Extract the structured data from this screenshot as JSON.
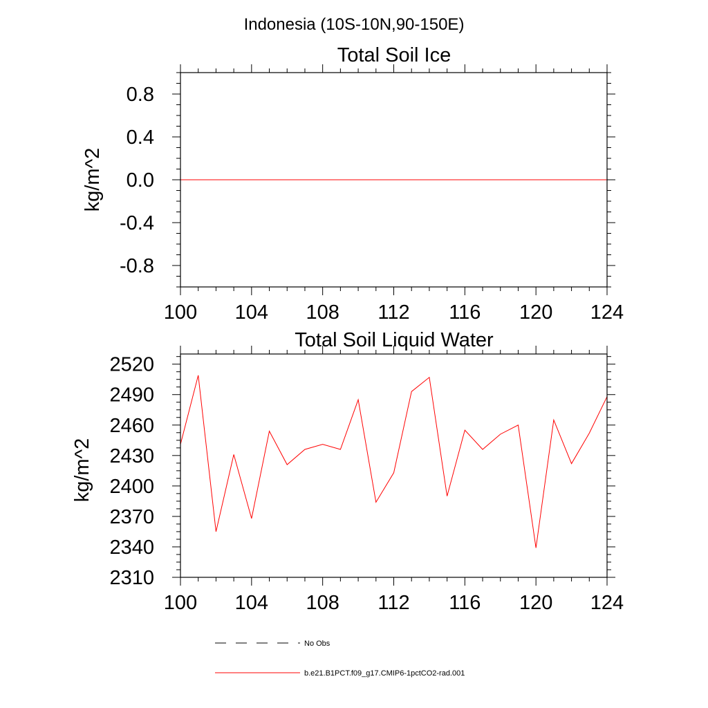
{
  "figure": {
    "suptitle": "Indonesia (10S-10N,90-150E)"
  },
  "chart_data": [
    {
      "type": "line",
      "title": "Total Soil Ice",
      "ylabel": "kg/m^2",
      "xlabel": "",
      "xlim": [
        100,
        124
      ],
      "ylim": [
        -1,
        1
      ],
      "x_ticks": [
        100,
        104,
        108,
        112,
        116,
        120,
        124
      ],
      "y_ticks": [
        -0.8,
        -0.4,
        0.0,
        0.4,
        0.8
      ],
      "y_tick_labels": [
        "-0.8",
        "-0.4",
        "0.0",
        "0.4",
        "0.8"
      ],
      "grid": false,
      "series": [
        {
          "name": "b.e21.B1PCT.f09_g17.CMIP6-1pctCO2-rad.001",
          "color": "#ff0000",
          "x": [
            100,
            101,
            102,
            103,
            104,
            105,
            106,
            107,
            108,
            109,
            110,
            111,
            112,
            113,
            114,
            115,
            116,
            117,
            118,
            119,
            120,
            121,
            122,
            123,
            124
          ],
          "values": [
            0,
            0,
            0,
            0,
            0,
            0,
            0,
            0,
            0,
            0,
            0,
            0,
            0,
            0,
            0,
            0,
            0,
            0,
            0,
            0,
            0,
            0,
            0,
            0,
            0
          ]
        }
      ]
    },
    {
      "type": "line",
      "title": "Total Soil Liquid Water",
      "ylabel": "kg/m^2",
      "xlabel": "",
      "xlim": [
        100,
        124
      ],
      "ylim": [
        2310,
        2530
      ],
      "x_ticks": [
        100,
        104,
        108,
        112,
        116,
        120,
        124
      ],
      "y_ticks": [
        2310,
        2340,
        2370,
        2400,
        2430,
        2460,
        2490,
        2520
      ],
      "y_tick_labels": [
        "2310",
        "2340",
        "2370",
        "2400",
        "2430",
        "2460",
        "2490",
        "2520"
      ],
      "grid": false,
      "series": [
        {
          "name": "b.e21.B1PCT.f09_g17.CMIP6-1pctCO2-rad.001",
          "color": "#ff0000",
          "x": [
            100,
            101,
            102,
            103,
            104,
            105,
            106,
            107,
            108,
            109,
            110,
            111,
            112,
            113,
            114,
            115,
            116,
            117,
            118,
            119,
            120,
            121,
            122,
            123,
            124
          ],
          "values": [
            2441,
            2509,
            2355,
            2431,
            2368,
            2454,
            2421,
            2436,
            2441,
            2436,
            2485,
            2384,
            2413,
            2493,
            2507,
            2390,
            2455,
            2436,
            2451,
            2460,
            2339,
            2465,
            2422,
            2452,
            2488
          ]
        }
      ]
    }
  ],
  "legend": {
    "placement": "bottom",
    "entries": [
      {
        "label": "No Obs",
        "style": "dashed",
        "color": "#000000"
      },
      {
        "label": "b.e21.B1PCT.f09_g17.CMIP6-1pctCO2-rad.001",
        "style": "solid",
        "color": "#ff0000"
      }
    ]
  }
}
